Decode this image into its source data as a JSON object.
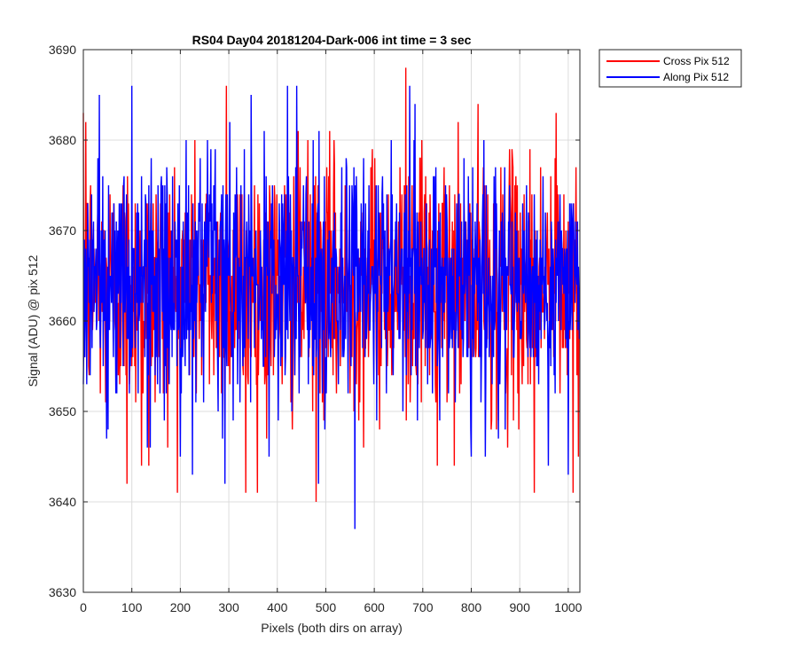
{
  "chart_data": {
    "type": "line",
    "title": "RS04 Day04 20181204-Dark-006 int time = 3 sec",
    "xlabel": "Pixels (both dirs on array)",
    "ylabel": "Signal (ADU) @ pix 512",
    "xlim": [
      0,
      1024
    ],
    "ylim": [
      3630,
      3690
    ],
    "xticks": [
      0,
      100,
      200,
      300,
      400,
      500,
      600,
      700,
      800,
      900,
      1000
    ],
    "yticks": [
      3630,
      3640,
      3650,
      3660,
      3670,
      3680,
      3690
    ],
    "grid": true,
    "legend_position": "outside-top-right",
    "series": [
      {
        "name": "Cross Pix 512",
        "color": "#ff0000",
        "sample_points": [
          {
            "x": 5,
            "y": 3682
          },
          {
            "x": 90,
            "y": 3642
          },
          {
            "x": 120,
            "y": 3644
          },
          {
            "x": 135,
            "y": 3644
          },
          {
            "x": 295,
            "y": 3686
          },
          {
            "x": 335,
            "y": 3641
          },
          {
            "x": 480,
            "y": 3640
          },
          {
            "x": 665,
            "y": 3688
          },
          {
            "x": 730,
            "y": 3644
          },
          {
            "x": 930,
            "y": 3641
          },
          {
            "x": 975,
            "y": 3683
          },
          {
            "x": 1010,
            "y": 3641
          }
        ],
        "mean": 3664,
        "noise_range": [
          3640,
          3688
        ]
      },
      {
        "name": "Along Pix 512",
        "color": "#0000ff",
        "sample_points": [
          {
            "x": 100,
            "y": 3686
          },
          {
            "x": 440,
            "y": 3686
          },
          {
            "x": 560,
            "y": 3637
          },
          {
            "x": 40,
            "y": 3676
          },
          {
            "x": 200,
            "y": 3645
          },
          {
            "x": 485,
            "y": 3642
          },
          {
            "x": 800,
            "y": 3645
          },
          {
            "x": 1000,
            "y": 3643
          }
        ],
        "mean": 3664,
        "noise_range": [
          3637,
          3686
        ]
      }
    ]
  }
}
